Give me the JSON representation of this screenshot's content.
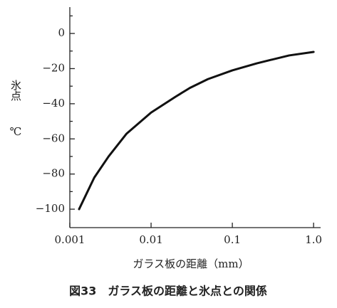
{
  "chart_data": {
    "type": "line",
    "y_label": "氷点",
    "y_unit": "℃",
    "x_label": "ガラス板の距離（mm）",
    "caption": "図33　ガラス板の距離と氷点との関係",
    "log_x": true,
    "x": [
      0.0013,
      0.002,
      0.003,
      0.005,
      0.01,
      0.02,
      0.03,
      0.05,
      0.1,
      0.2,
      0.3,
      0.5,
      1.0
    ],
    "series": [
      {
        "color": "#111111",
        "values": [
          -100,
          -82,
          -70,
          -57,
          -45,
          -36,
          -31,
          -26,
          -21,
          -17,
          -15,
          -12.5,
          -10.5
        ]
      }
    ],
    "xlim": [
      0.001,
      1.22
    ],
    "xticks": [
      0.001,
      0.01,
      0.1,
      {
        "value": 1,
        "label": "1.0"
      }
    ],
    "ylim": [
      -110.5,
      15
    ],
    "yticks": [
      0,
      {
        "value": -20,
        "label": "−20"
      },
      {
        "value": -40,
        "label": "−40"
      },
      {
        "value": -60,
        "label": "−60"
      },
      {
        "value": -80,
        "label": "−80"
      },
      {
        "value": -100,
        "label": "−100"
      }
    ],
    "yminorticks": [
      10,
      -10,
      -30,
      -50,
      -70,
      -90
    ]
  }
}
